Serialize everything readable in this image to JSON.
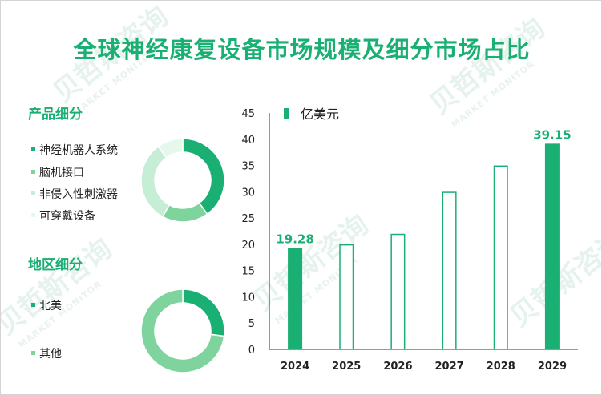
{
  "title": "全球神经康复设备市场规模及细分市场占比",
  "watermark": {
    "cn": "贝哲斯咨询",
    "en": "MARKET MONITOR"
  },
  "product_section": {
    "title": "产品细分",
    "items": [
      {
        "label": "神经机器人系统",
        "color": "#1aaf73"
      },
      {
        "label": "脑机接口",
        "color": "#7fd49e"
      },
      {
        "label": "非侵入性刺激器",
        "color": "#c6edd5"
      },
      {
        "label": "可穿戴设备",
        "color": "#e6f7ec"
      }
    ]
  },
  "region_section": {
    "title": "地区细分",
    "items": [
      {
        "label": "北美",
        "color": "#1aaf73"
      },
      {
        "label": "其他",
        "color": "#7fd49e"
      }
    ]
  },
  "chart_data": [
    {
      "type": "bar",
      "title": "",
      "legend": "亿美元",
      "legend_placement": "top-left",
      "categories": [
        "2024",
        "2025",
        "2026",
        "2027",
        "2028",
        "2029"
      ],
      "values": [
        19.28,
        20.0,
        22.0,
        30.0,
        35.0,
        39.15
      ],
      "styles": [
        "filled",
        "outline",
        "outline",
        "outline",
        "outline",
        "filled"
      ],
      "data_labels": [
        "19.28",
        "",
        "",
        "",
        "",
        "39.15"
      ],
      "ylim": [
        0,
        45
      ],
      "yticks": [
        0,
        5,
        10,
        15,
        20,
        25,
        30,
        35,
        40,
        45
      ],
      "grid": false,
      "color": "#1aaf73"
    },
    {
      "type": "pie",
      "title": "产品细分",
      "categories": [
        "神经机器人系统",
        "脑机接口",
        "非侵入性刺激器",
        "可穿戴设备"
      ],
      "values": [
        40,
        18,
        32,
        10
      ]
    },
    {
      "type": "pie",
      "title": "地区细分",
      "categories": [
        "北美",
        "其他"
      ],
      "values": [
        27,
        73
      ]
    }
  ]
}
